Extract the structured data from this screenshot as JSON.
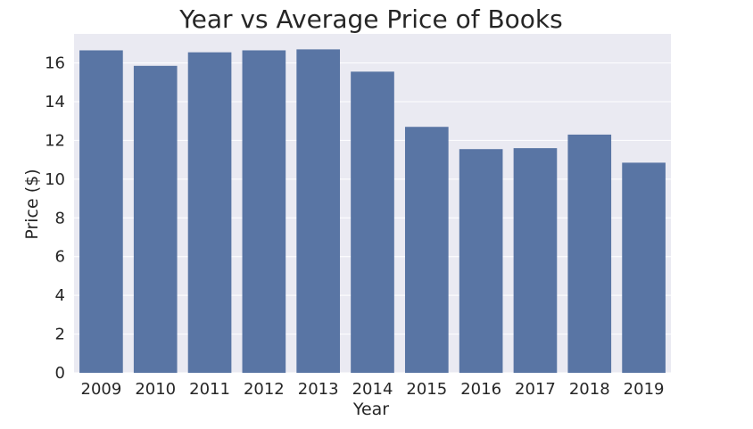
{
  "chart_data": {
    "type": "bar",
    "title": "Year vs Average Price of Books",
    "xlabel": "Year",
    "ylabel": "Price ($)",
    "categories": [
      "2009",
      "2010",
      "2011",
      "2012",
      "2013",
      "2014",
      "2015",
      "2016",
      "2017",
      "2018",
      "2019"
    ],
    "values": [
      16.65,
      15.85,
      16.55,
      16.65,
      16.7,
      15.55,
      12.7,
      11.55,
      11.6,
      12.3,
      10.85
    ],
    "ylim": [
      0,
      17.5
    ],
    "yticks": [
      0,
      2,
      4,
      6,
      8,
      10,
      12,
      14,
      16
    ],
    "grid": true,
    "colors": {
      "bar": "#5975a4",
      "plot_background": "#eaeaf2",
      "grid": "#ffffff"
    }
  }
}
